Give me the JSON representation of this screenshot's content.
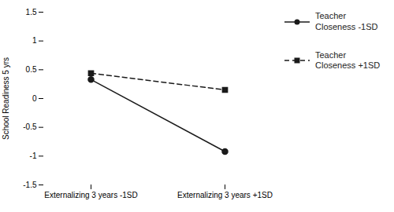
{
  "chart_data": {
    "type": "line",
    "categories": [
      "Externalizing 3 years -1SD",
      "Externalizing 3 years +1SD"
    ],
    "series": [
      {
        "name": "Teacher\nCloseness -1SD",
        "color": "#1a1a1a",
        "values": [
          0.33,
          -0.92
        ],
        "marker": "circle",
        "line_style": "solid"
      },
      {
        "name": "Teacher\nCloseness +1SD",
        "color": "#1a1a1a",
        "values": [
          0.44,
          0.15
        ],
        "marker": "square",
        "line_style": "dashed"
      }
    ],
    "ylabel": "School Readiness 5 yrs",
    "ylim": [
      -1.5,
      1.5
    ],
    "yticks": [
      -1.5,
      -1,
      -0.5,
      0,
      0.5,
      1,
      1.5
    ],
    "grid": false,
    "legend": "right"
  }
}
